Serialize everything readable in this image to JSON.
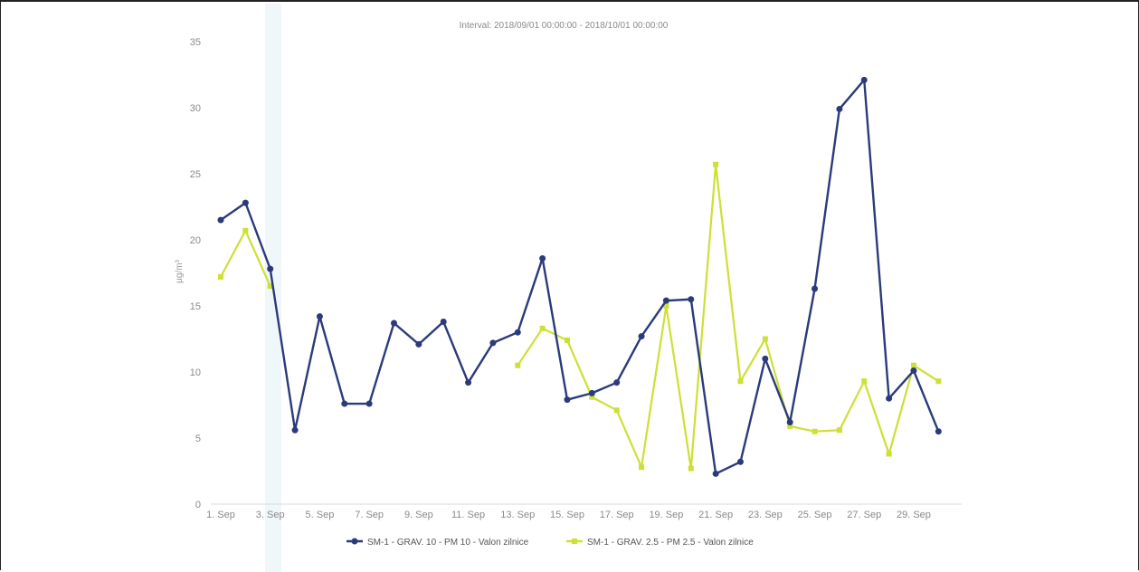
{
  "chart_data": {
    "type": "line",
    "title": "Interval: 2018/09/01 00:00:00 - 2018/10/01 00:00:00",
    "ylabel": "µg/m³",
    "ylim": [
      0,
      35
    ],
    "yticks": [
      0,
      5,
      10,
      15,
      20,
      25,
      30,
      35
    ],
    "xlim": [
      1,
      30.5
    ],
    "x_ticks": [
      1,
      3,
      5,
      7,
      9,
      11,
      13,
      15,
      17,
      19,
      21,
      23,
      25,
      27,
      29
    ],
    "x_tick_labels": [
      "1. Sep",
      "3. Sep",
      "5. Sep",
      "7. Sep",
      "9. Sep",
      "11. Sep",
      "13. Sep",
      "15. Sep",
      "17. Sep",
      "19. Sep",
      "21. Sep",
      "23. Sep",
      "25. Sep",
      "27. Sep",
      "29. Sep"
    ],
    "grid": false,
    "legend_position": "bottom-center",
    "series": [
      {
        "name": "SM-1 - GRAV. 10 - PM 10 - Valon zilnice",
        "color": "#2b3a7a",
        "x": [
          1,
          2,
          3,
          4,
          5,
          6,
          7,
          8,
          9,
          10,
          11,
          12,
          13,
          14,
          15,
          16,
          17,
          18,
          19,
          20,
          21,
          22,
          23,
          24,
          25,
          26,
          27,
          28,
          29,
          30
        ],
        "y": [
          21.5,
          22.8,
          17.8,
          5.6,
          14.2,
          7.6,
          7.6,
          13.7,
          12.1,
          13.8,
          9.2,
          12.2,
          13.0,
          18.6,
          7.9,
          8.4,
          9.2,
          12.7,
          15.4,
          15.5,
          2.3,
          3.2,
          11.0,
          6.2,
          16.3,
          29.9,
          32.1,
          8.0,
          10.1,
          5.5
        ]
      },
      {
        "name": "SM-1 - GRAV. 2.5 - PM 2.5 - Valon zilnice",
        "color": "#cde034",
        "segments": [
          {
            "x": [
              1,
              2,
              3
            ],
            "y": [
              17.2,
              20.7,
              16.5
            ]
          },
          {
            "x": [
              13,
              14,
              15,
              16,
              17,
              18,
              19,
              20,
              21,
              22,
              23,
              24,
              25,
              26,
              27,
              28,
              29,
              30
            ],
            "y": [
              10.5,
              13.3,
              12.4,
              8.1,
              7.1,
              2.8,
              15.0,
              2.7,
              25.7,
              9.3,
              12.5,
              5.9,
              5.5,
              5.6,
              9.3,
              3.8,
              10.5,
              9.3
            ]
          }
        ]
      }
    ]
  }
}
